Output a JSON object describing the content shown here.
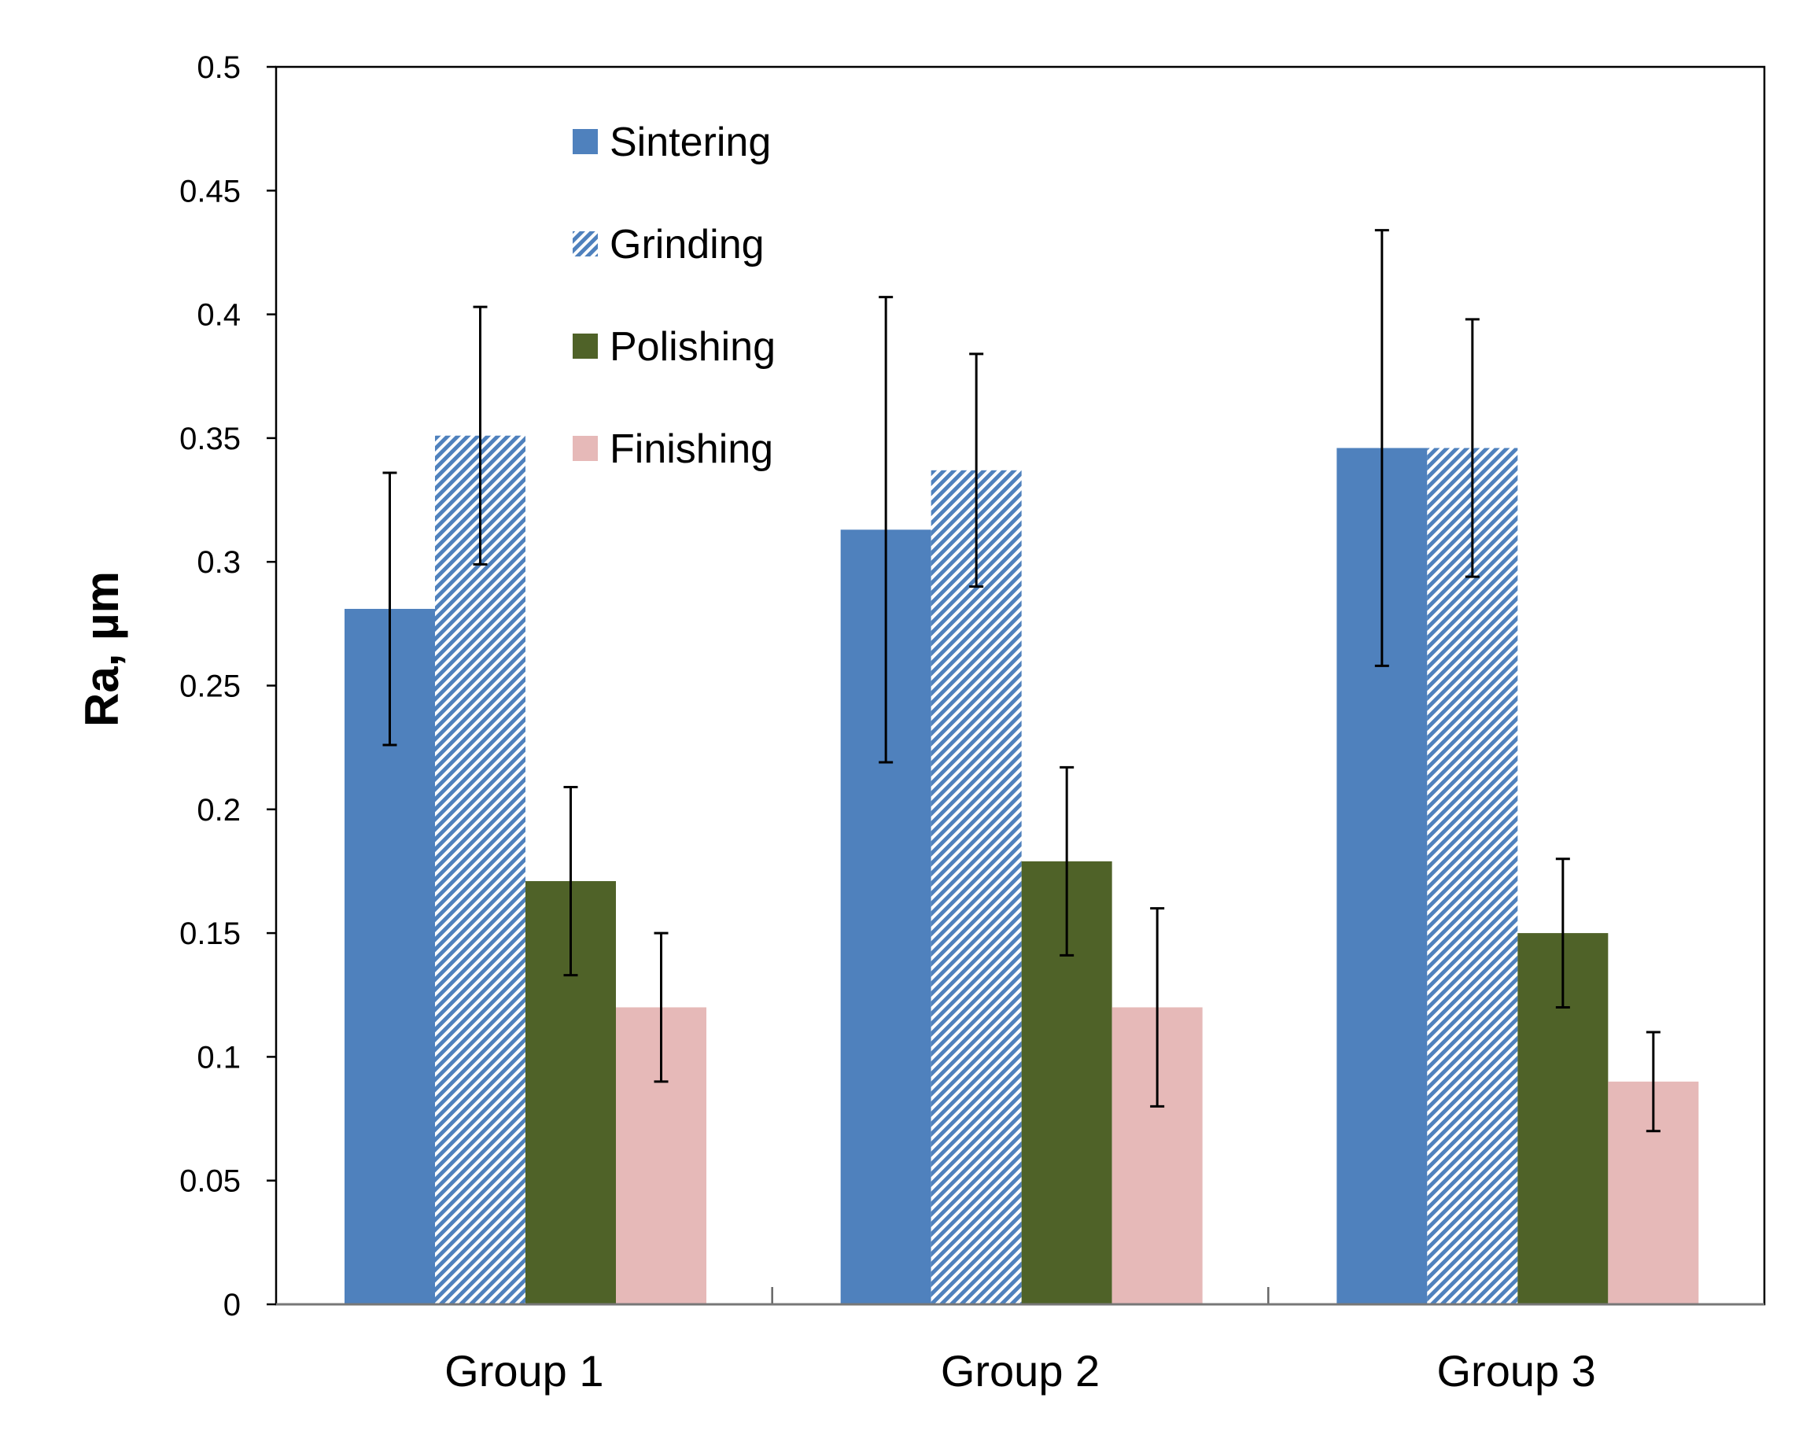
{
  "chart_data": {
    "type": "bar",
    "ylabel": "Ra, µm",
    "xlabel": "",
    "ylim": [
      0,
      0.5
    ],
    "yticks": [
      0,
      0.05,
      0.1,
      0.15,
      0.2,
      0.25,
      0.3,
      0.35,
      0.4,
      0.45,
      0.5
    ],
    "ytick_labels": [
      "0",
      "0.05",
      "0.1",
      "0.15",
      "0.2",
      "0.25",
      "0.3",
      "0.35",
      "0.4",
      "0.45",
      "0.5"
    ],
    "categories": [
      "Group 1",
      "Group 2",
      "Group 3"
    ],
    "grid": false,
    "legend_position": "top-left inside plot",
    "series": [
      {
        "name": "Sintering",
        "color": "#4f81bd",
        "pattern": "solid",
        "values": [
          0.281,
          0.313,
          0.346
        ],
        "errors": [
          0.055,
          0.094,
          0.088
        ]
      },
      {
        "name": "Grinding",
        "color": "#4f81bd",
        "pattern": "diagonal-hatch",
        "values": [
          0.351,
          0.337,
          0.346
        ],
        "errors": [
          0.052,
          0.047,
          0.052
        ]
      },
      {
        "name": "Polishing",
        "color": "#4f6228",
        "pattern": "solid",
        "values": [
          0.171,
          0.179,
          0.15
        ],
        "errors": [
          0.038,
          0.038,
          0.03
        ]
      },
      {
        "name": "Finishing",
        "color": "#e6b9b8",
        "pattern": "solid",
        "values": [
          0.12,
          0.12,
          0.09
        ],
        "errors": [
          0.03,
          0.04,
          0.02
        ]
      }
    ]
  }
}
